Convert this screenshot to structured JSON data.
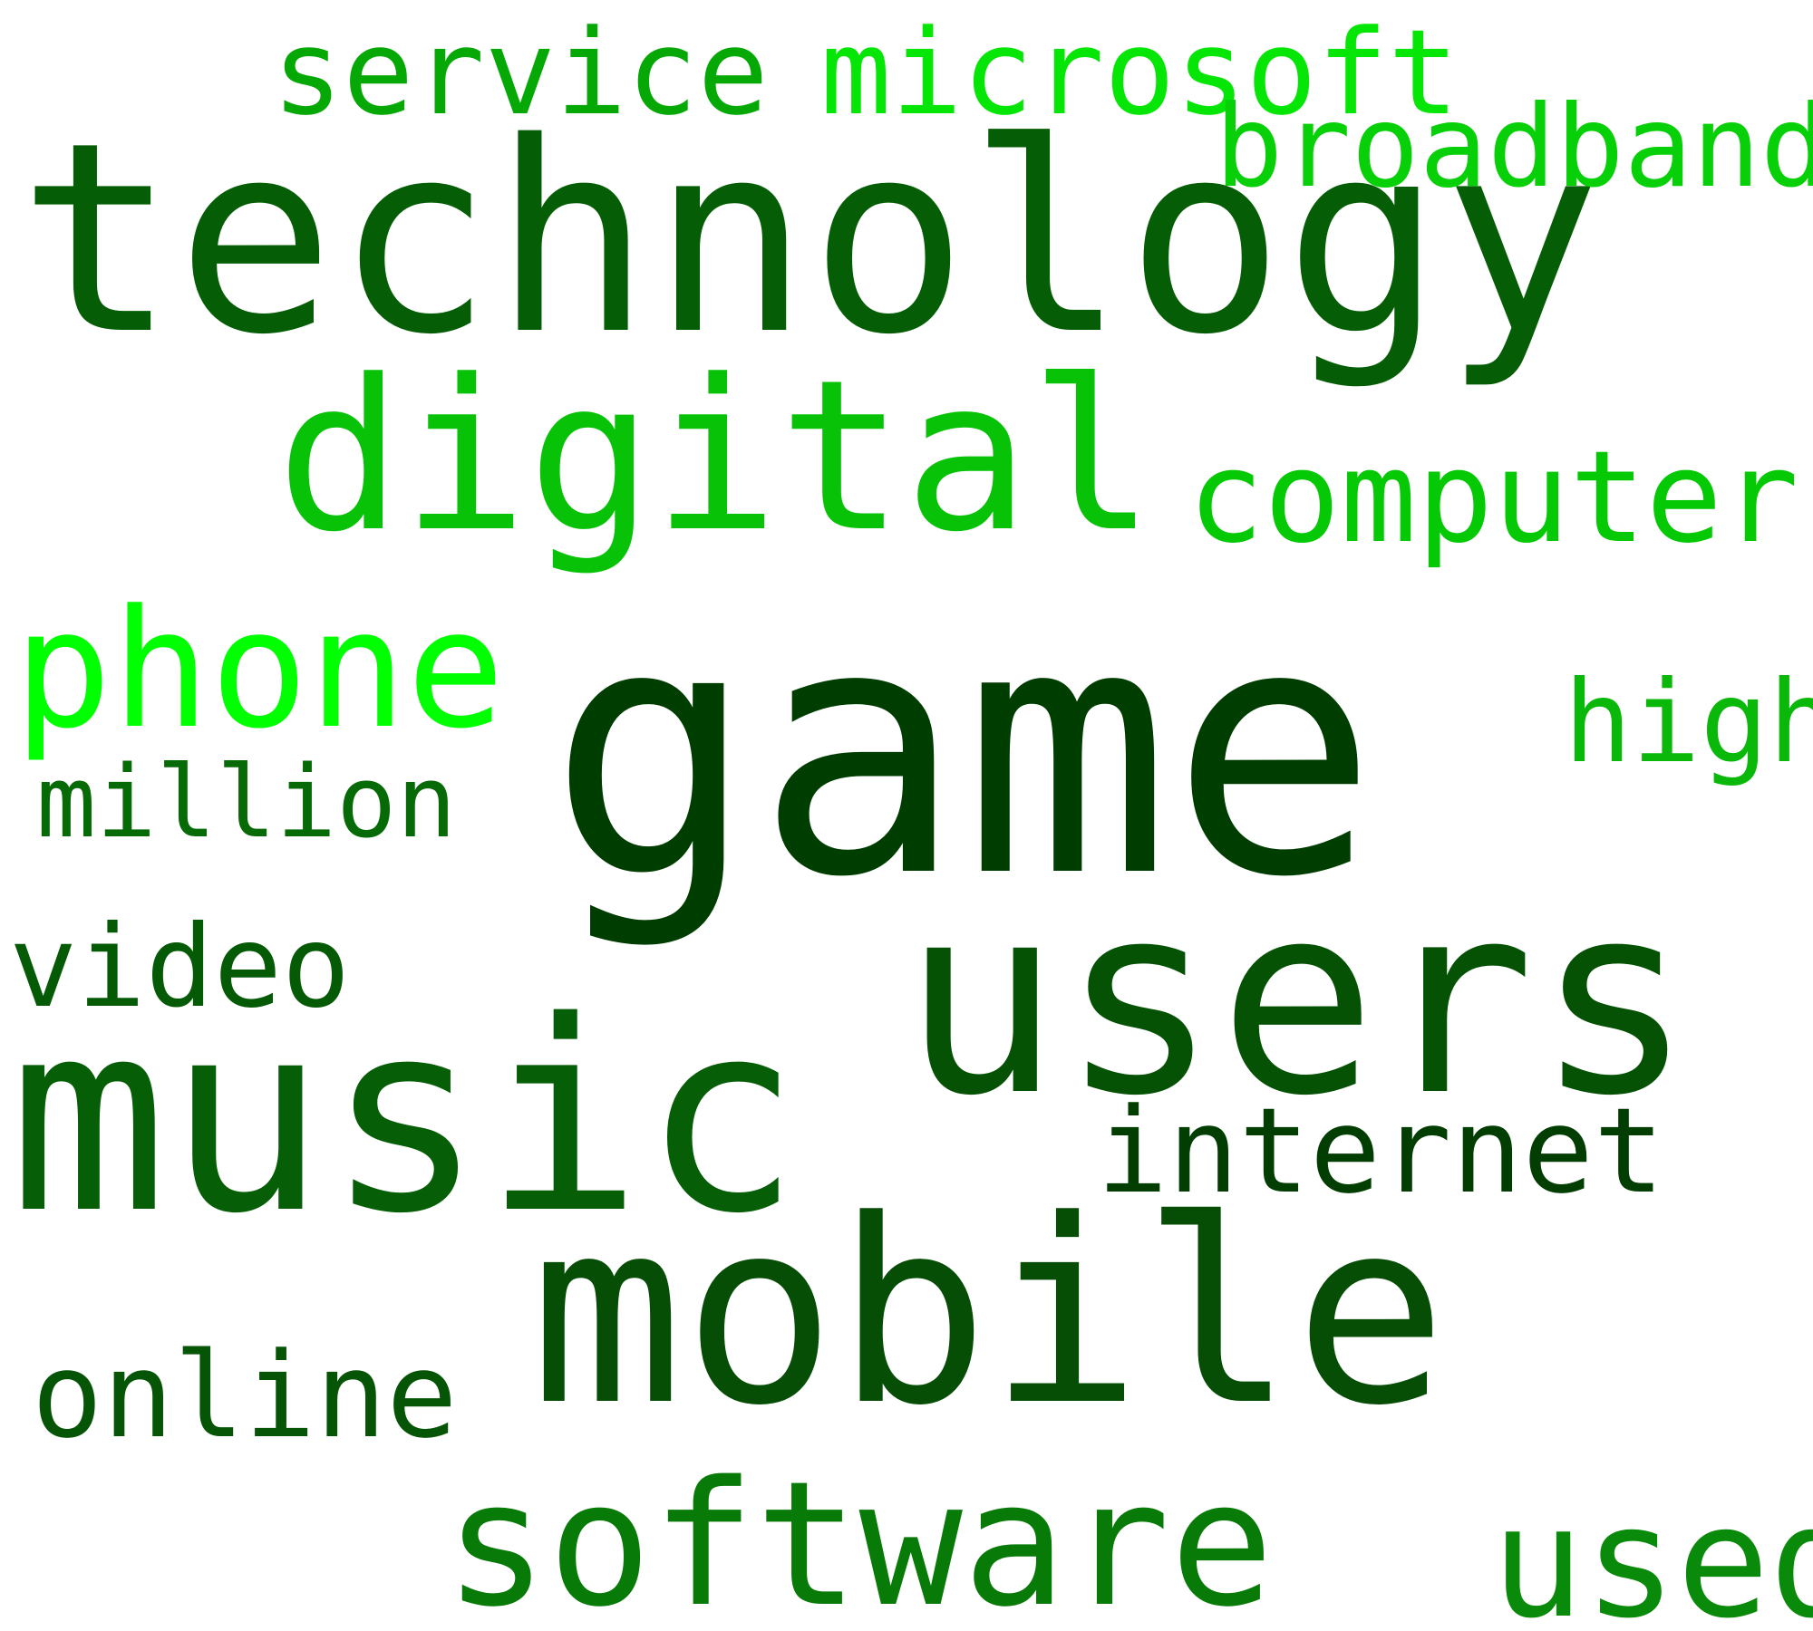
{
  "words": [
    {
      "text": "game",
      "color": "#003d00"
    },
    {
      "text": "technology",
      "color": "#055e05"
    },
    {
      "text": "users",
      "color": "#055205"
    },
    {
      "text": "music",
      "color": "#065e06"
    },
    {
      "text": "mobile",
      "color": "#064d06"
    },
    {
      "text": "digital",
      "color": "#08c208"
    },
    {
      "text": "software",
      "color": "#087a08"
    },
    {
      "text": "phone",
      "color": "#00ff00"
    },
    {
      "text": "used",
      "color": "#0a8a0a"
    },
    {
      "text": "computer",
      "color": "#06c906"
    },
    {
      "text": "internet",
      "color": "#023d02"
    },
    {
      "text": "online",
      "color": "#065406"
    },
    {
      "text": "service",
      "color": "#06a806"
    },
    {
      "text": "microsoft",
      "color": "#06e606"
    },
    {
      "text": "broadband",
      "color": "#08d008"
    },
    {
      "text": "high",
      "color": "#0ab80a"
    },
    {
      "text": "video",
      "color": "#055a05"
    },
    {
      "text": "million",
      "color": "#066b06"
    }
  ]
}
